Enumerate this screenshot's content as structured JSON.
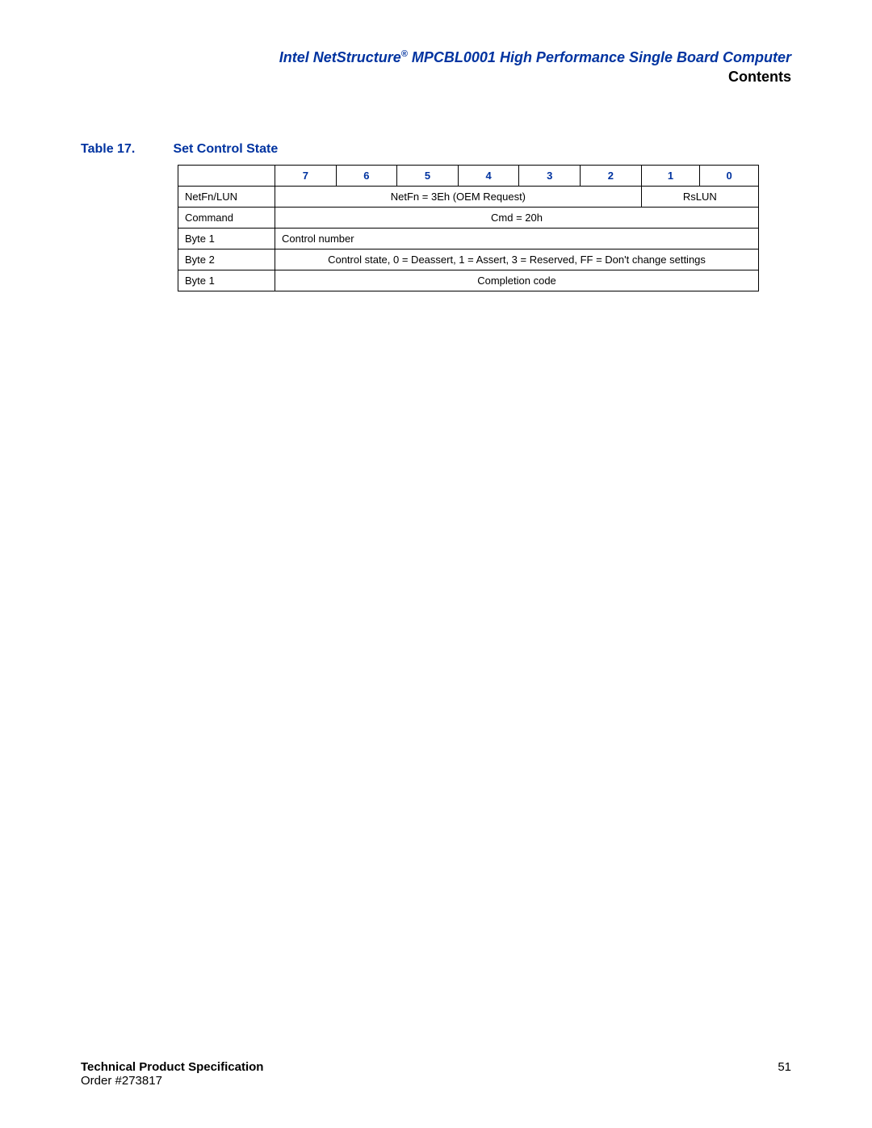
{
  "header": {
    "title_prefix": "Intel NetStructure",
    "reg_mark": "®",
    "title_suffix": " MPCBL0001 High Performance Single Board Computer",
    "section": "Contents"
  },
  "table": {
    "label": "Table 17.",
    "title": "Set Control State",
    "bit_headers": [
      "7",
      "6",
      "5",
      "4",
      "3",
      "2",
      "1",
      "0"
    ],
    "rows": [
      {
        "label": "NetFn/LUN",
        "col1_span": 6,
        "col1_text": "NetFn = 3Eh (OEM Request)",
        "col2_span": 2,
        "col2_text": "RsLUN"
      },
      {
        "label": "Command",
        "full_text": "Cmd = 20h"
      },
      {
        "label": "Byte 1",
        "full_text_left": "Control number"
      },
      {
        "label": "Byte 2",
        "full_text": "Control state, 0 = Deassert, 1 = Assert, 3 = Reserved, FF = Don't change settings"
      },
      {
        "label": "Byte 1",
        "full_text": "Completion code"
      }
    ]
  },
  "footer": {
    "spec_title": "Technical Product Specification",
    "order": "Order #273817",
    "page": "51"
  },
  "colors": {
    "brand_blue": "#0033a0",
    "text": "#000000",
    "background": "#ffffff",
    "border": "#000000"
  },
  "typography": {
    "header_fontsize": 18,
    "caption_fontsize": 16,
    "table_fontsize": 13,
    "footer_fontsize": 15
  }
}
